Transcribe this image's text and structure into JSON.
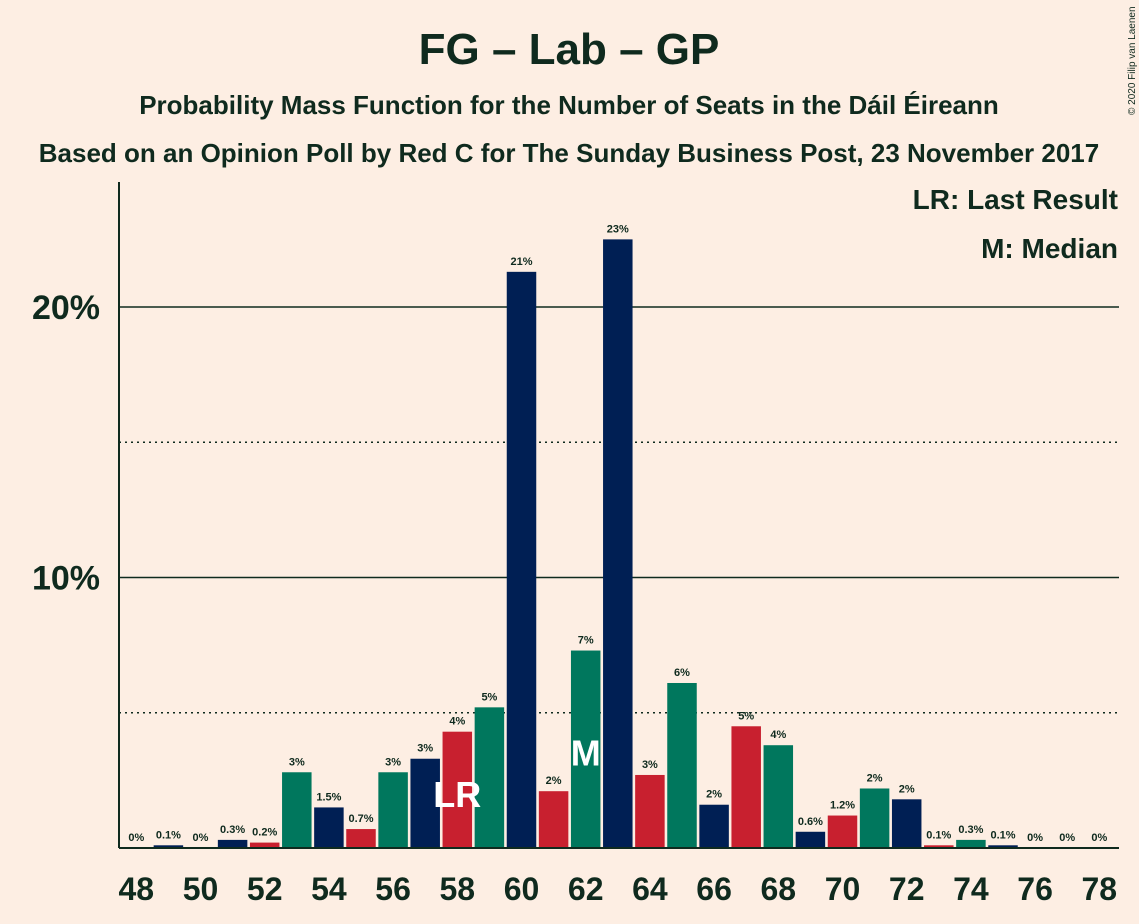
{
  "header": {
    "title": "FG – Lab – GP",
    "subtitle": "Probability Mass Function for the Number of Seats in the Dáil Éireann",
    "subtitle2": "Based on an Opinion Poll by Red C for The Sunday Business Post, 23 November 2017",
    "copyright": "© 2020 Filip van Laenen"
  },
  "legend": {
    "last_result": "LR: Last Result",
    "median": "M: Median"
  },
  "colors": {
    "navy": "#001F54",
    "red": "#C8202F",
    "green": "#00775D",
    "background": "#FDEEE3"
  },
  "chart_data": {
    "type": "bar",
    "x": [
      48,
      49,
      50,
      51,
      52,
      53,
      54,
      55,
      56,
      57,
      58,
      59,
      60,
      61,
      62,
      63,
      64,
      65,
      66,
      67,
      68,
      69,
      70,
      71,
      72,
      73,
      74,
      75,
      76,
      77,
      78
    ],
    "values": [
      0,
      0.1,
      0,
      0.3,
      0.2,
      2.8,
      1.5,
      0.7,
      2.8,
      3.3,
      4.3,
      5.2,
      21.3,
      2.1,
      7.3,
      22.5,
      2.7,
      6.1,
      1.6,
      4.5,
      3.8,
      0.6,
      1.2,
      2.2,
      1.8,
      0.1,
      0.3,
      0.1,
      0,
      0,
      0
    ],
    "labels": [
      "0%",
      "0.1%",
      "0%",
      "0.3%",
      "0.2%",
      "3%",
      "1.5%",
      "0.7%",
      "3%",
      "3%",
      "4%",
      "5%",
      "21%",
      "2%",
      "7%",
      "23%",
      "3%",
      "6%",
      "2%",
      "5%",
      "4%",
      "0.6%",
      "1.2%",
      "2%",
      "2%",
      "0.1%",
      "0.3%",
      "0.1%",
      "0%",
      "0%",
      "0%"
    ],
    "colors": [
      "green",
      "navy",
      "red",
      "navy",
      "red",
      "green",
      "navy",
      "red",
      "green",
      "navy",
      "red",
      "green",
      "navy",
      "red",
      "green",
      "navy",
      "red",
      "green",
      "navy",
      "red",
      "green",
      "navy",
      "red",
      "green",
      "navy",
      "red",
      "green",
      "navy",
      "red",
      "green",
      "navy"
    ],
    "x_tick_labels": [
      "48",
      "50",
      "52",
      "54",
      "56",
      "58",
      "60",
      "62",
      "64",
      "66",
      "68",
      "70",
      "72",
      "74",
      "76",
      "78"
    ],
    "y_tick_labels": [
      {
        "value": 10,
        "label": "10%"
      },
      {
        "value": 20,
        "label": "20%"
      }
    ],
    "ylim": [
      0,
      24.6
    ],
    "grid": "solid at 10% and 20%, dotted at 5% and 15%",
    "last_result": {
      "x": 58,
      "mark": "LR"
    },
    "median": {
      "x": 62,
      "mark": "M"
    }
  }
}
